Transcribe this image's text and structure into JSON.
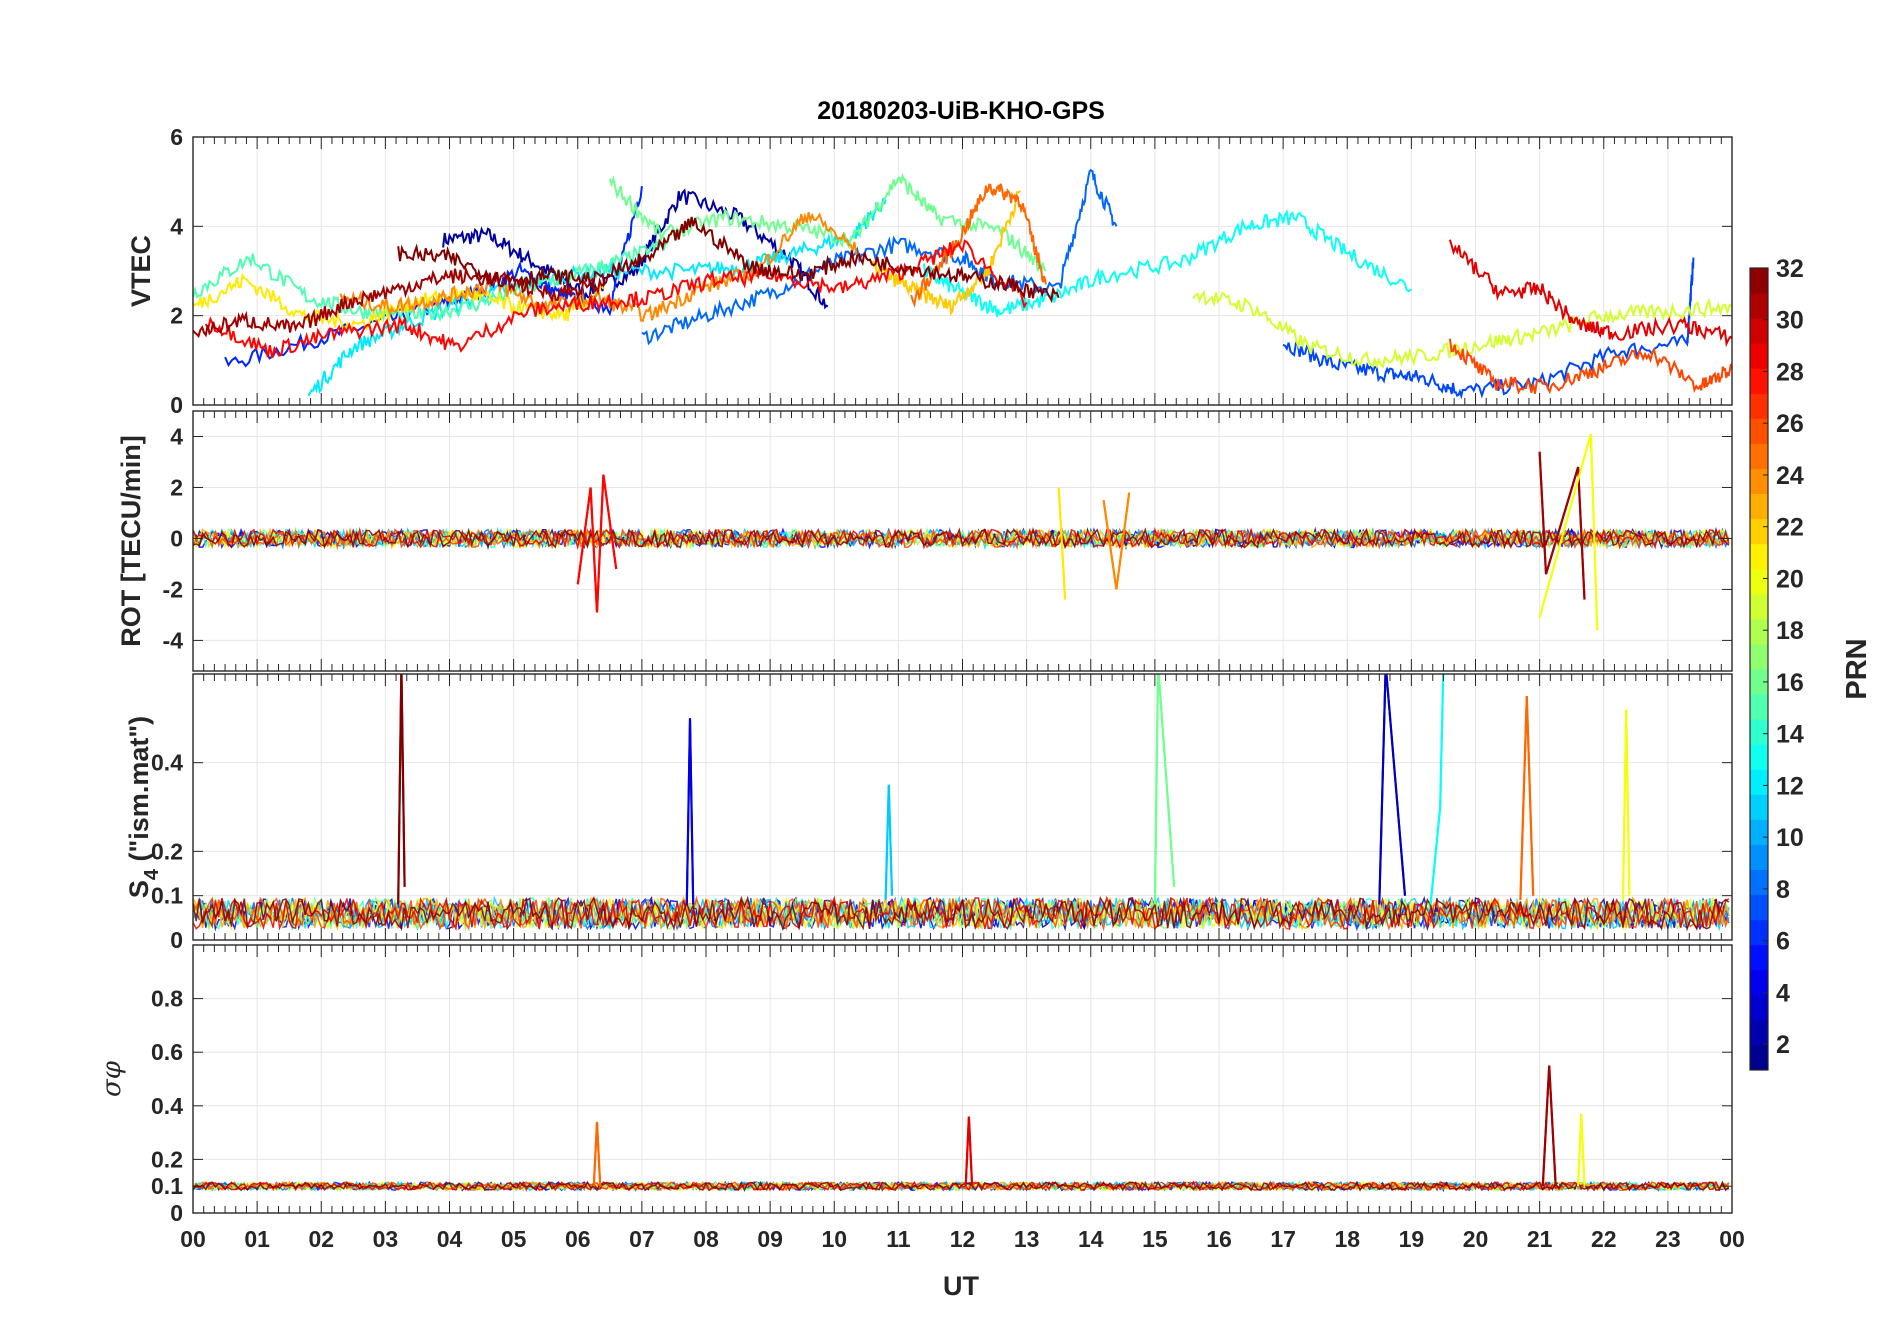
{
  "chart_data": {
    "type": "line",
    "title": "20180203-UiB-KHO-GPS",
    "xlabel": "UT",
    "x_ticks": [
      "00",
      "01",
      "02",
      "03",
      "04",
      "05",
      "06",
      "07",
      "08",
      "09",
      "10",
      "11",
      "12",
      "13",
      "14",
      "15",
      "16",
      "17",
      "18",
      "19",
      "20",
      "21",
      "22",
      "23",
      "00"
    ],
    "xlim_hours": [
      0,
      24
    ],
    "colorbar": {
      "label": "PRN",
      "range": [
        1,
        32
      ],
      "ticks": [
        "2",
        "4",
        "6",
        "8",
        "10",
        "12",
        "14",
        "16",
        "18",
        "20",
        "22",
        "24",
        "26",
        "28",
        "30",
        "32"
      ]
    },
    "panels": [
      {
        "ylabel": "VTEC",
        "ylim": [
          0,
          6
        ],
        "yticks": [
          "0",
          "2",
          "4",
          "6"
        ],
        "series": [
          {
            "prn": 2,
            "x": [
              3.9,
              4.6,
              5.3,
              6.1,
              6.9,
              7.6,
              8.5,
              9.3,
              9.9
            ],
            "y": [
              3.7,
              3.8,
              3.2,
              2.5,
              3.0,
              4.7,
              4.2,
              3.3,
              2.2
            ]
          },
          {
            "prn": 6,
            "x": [
              0.5,
              2.0,
              3.3,
              4.2,
              5.1,
              5.8,
              6.5,
              7.0
            ],
            "y": [
              0.9,
              1.5,
              2.0,
              2.4,
              3.0,
              2.4,
              2.2,
              4.9
            ]
          },
          {
            "prn": 7,
            "x": [
              17.0,
              17.8,
              18.6,
              19.2,
              19.8,
              21.0,
              22.2,
              23.3,
              23.4
            ],
            "y": [
              1.4,
              0.9,
              0.7,
              0.6,
              0.3,
              0.5,
              1.2,
              1.4,
              3.3
            ]
          },
          {
            "prn": 8,
            "x": [
              7.0,
              8.0,
              9.0,
              10.0,
              11.0,
              12.0,
              12.5,
              13.5,
              14.0,
              14.4
            ],
            "y": [
              1.5,
              2.0,
              2.5,
              3.2,
              3.6,
              3.3,
              2.8,
              2.6,
              5.2,
              4.0
            ]
          },
          {
            "prn": 12,
            "x": [
              1.8,
              2.5,
              3.3,
              4.4,
              5.4,
              6.4,
              7.7,
              8.6,
              9.4,
              10.3,
              10.8
            ],
            "y": [
              0.2,
              1.3,
              1.8,
              2.4,
              2.8,
              3.0,
              3.0,
              3.1,
              3.4,
              3.8,
              4.6
            ]
          },
          {
            "prn": 13,
            "x": [
              11.4,
              12.0,
              12.6,
              13.4,
              14.2,
              15.4,
              16.4,
              17.2,
              18.0,
              19.0
            ],
            "y": [
              3.0,
              2.5,
              2.1,
              2.4,
              2.9,
              3.2,
              4.0,
              4.2,
              3.4,
              2.6
            ]
          },
          {
            "prn": 15,
            "x": [
              0.0,
              0.9,
              1.8,
              2.6,
              3.4,
              4.3,
              5.1,
              5.9,
              6.6,
              7.4
            ],
            "y": [
              2.5,
              3.3,
              2.4,
              2.1,
              2.0,
              2.2,
              2.6,
              2.9,
              3.2,
              3.6
            ]
          },
          {
            "prn": 16,
            "x": [
              6.5,
              7.3,
              8.3,
              9.3,
              10.3,
              11.0,
              11.6,
              12.6,
              13.3
            ],
            "y": [
              5.0,
              3.8,
              4.2,
              4.0,
              3.7,
              5.1,
              4.2,
              3.9,
              3.0
            ]
          },
          {
            "prn": 19,
            "x": [
              15.6,
              16.5,
              17.4,
              18.3,
              19.2,
              20.2,
              21.0,
              22.0,
              23.0,
              24.0
            ],
            "y": [
              2.5,
              2.2,
              1.3,
              1.0,
              1.1,
              1.4,
              1.6,
              2.0,
              2.1,
              2.2
            ]
          },
          {
            "prn": 21,
            "x": [
              0.0,
              0.8,
              1.7,
              2.6,
              3.4,
              4.3,
              5.0,
              5.8,
              6.4
            ],
            "y": [
              2.2,
              2.8,
              2.0,
              1.8,
              2.3,
              2.5,
              2.2,
              2.0,
              2.6
            ]
          },
          {
            "prn": 22,
            "x": [
              10.6,
              11.2,
              11.8,
              12.4,
              12.9
            ],
            "y": [
              3.1,
              2.6,
              2.2,
              3.0,
              4.8
            ]
          },
          {
            "prn": 24,
            "x": [
              2.3,
              3.1,
              3.9,
              4.7,
              5.5,
              6.3,
              7.1,
              7.9,
              8.8,
              9.6,
              10.4
            ],
            "y": [
              2.4,
              2.2,
              2.4,
              2.7,
              2.2,
              2.4,
              2.0,
              2.6,
              3.0,
              4.3,
              3.4
            ]
          },
          {
            "prn": 25,
            "x": [
              11.2,
              11.9,
              12.4,
              12.9,
              13.3
            ],
            "y": [
              2.3,
              3.6,
              4.9,
              4.6,
              2.7
            ]
          },
          {
            "prn": 26,
            "x": [
              19.6,
              20.3,
              21.1,
              21.9,
              22.7,
              23.5,
              24.0
            ],
            "y": [
              1.4,
              0.5,
              0.4,
              0.8,
              1.2,
              0.4,
              0.8
            ]
          },
          {
            "prn": 28,
            "x": [
              0.2,
              1.2,
              2.2,
              3.3,
              4.1,
              5.2,
              6.2,
              7.1,
              8.1,
              9.1,
              10.1,
              11.1,
              12.0,
              13.0
            ],
            "y": [
              1.9,
              1.2,
              1.6,
              1.8,
              1.3,
              2.1,
              2.3,
              2.4,
              2.8,
              2.9,
              2.6,
              3.0,
              3.6,
              2.3
            ]
          },
          {
            "prn": 29,
            "x": [
              19.6,
              20.4,
              21.0,
              21.6,
              22.2,
              23.2,
              24.0
            ],
            "y": [
              3.6,
              2.5,
              2.6,
              1.8,
              1.6,
              1.8,
              1.5
            ]
          },
          {
            "prn": 31,
            "x": [
              0.0,
              0.8,
              1.6,
              2.4,
              3.2,
              4.0,
              4.8,
              5.6,
              6.4
            ],
            "y": [
              1.6,
              1.9,
              1.7,
              2.3,
              2.6,
              2.9,
              2.8,
              2.5,
              2.7
            ]
          },
          {
            "prn": 32,
            "x": [
              3.2,
              4.0,
              4.8,
              5.5,
              6.3,
              7.1,
              7.8,
              8.7,
              9.5,
              10.3,
              11.1,
              11.9,
              12.7,
              13.5
            ],
            "y": [
              3.4,
              3.3,
              2.8,
              2.9,
              2.8,
              3.3,
              4.1,
              3.1,
              2.9,
              3.3,
              3.1,
              2.9,
              2.7,
              2.4
            ]
          }
        ]
      },
      {
        "ylabel": "ROT [TECU/min]",
        "ylim": [
          -5.2,
          5.0
        ],
        "yticks": [
          "-4",
          "-2",
          "0",
          "2",
          "4"
        ],
        "series": [
          {
            "prn": 28,
            "x": [
              6.0,
              6.2,
              6.3,
              6.4,
              6.6
            ],
            "y": [
              -1.8,
              2.0,
              -2.9,
              2.5,
              -1.2
            ]
          },
          {
            "prn": 21,
            "x": [
              13.5,
              13.6
            ],
            "y": [
              2.0,
              -2.4
            ]
          },
          {
            "prn": 24,
            "x": [
              14.2,
              14.4,
              14.6
            ],
            "y": [
              1.5,
              -2.0,
              1.8
            ]
          },
          {
            "prn": 31,
            "x": [
              21.0,
              21.1,
              21.6,
              21.7
            ],
            "y": [
              3.4,
              -1.4,
              2.8,
              -2.4
            ]
          },
          {
            "prn": 20,
            "x": [
              21.0,
              21.8,
              21.9
            ],
            "y": [
              -3.1,
              4.1,
              -3.6
            ]
          }
        ]
      },
      {
        "ylabel": "S4 (\"ism.mat\")",
        "ylabel_main": "S",
        "ylabel_sub": "4",
        "ylabel_rest": " (\"ism.mat\")",
        "ylim": [
          0,
          0.6
        ],
        "yticks": [
          "0",
          "0.1",
          "0.2",
          "0.4"
        ],
        "series": [
          {
            "prn": 32,
            "x": [
              3.2,
              3.25,
              3.3
            ],
            "y": [
              0.08,
              0.62,
              0.12
            ]
          },
          {
            "prn": 4,
            "x": [
              7.7,
              7.75,
              7.8
            ],
            "y": [
              0.08,
              0.5,
              0.08
            ]
          },
          {
            "prn": 11,
            "x": [
              10.8,
              10.85,
              10.9
            ],
            "y": [
              0.09,
              0.35,
              0.1
            ]
          },
          {
            "prn": 16,
            "x": [
              15.0,
              15.05,
              15.3
            ],
            "y": [
              0.08,
              0.62,
              0.12
            ]
          },
          {
            "prn": 3,
            "x": [
              18.5,
              18.6,
              18.9
            ],
            "y": [
              0.08,
              0.62,
              0.1
            ]
          },
          {
            "prn": 13,
            "x": [
              19.3,
              19.45,
              19.5
            ],
            "y": [
              0.08,
              0.3,
              0.62
            ]
          },
          {
            "prn": 25,
            "x": [
              20.7,
              20.8,
              20.9
            ],
            "y": [
              0.09,
              0.55,
              0.1
            ]
          },
          {
            "prn": 20,
            "x": [
              22.3,
              22.35,
              22.4
            ],
            "y": [
              0.09,
              0.52,
              0.1
            ]
          }
        ]
      },
      {
        "ylabel": "σφ",
        "ylim": [
          0,
          1.0
        ],
        "yticks": [
          "0",
          "0.1",
          "0.2",
          "0.4",
          "0.6",
          "0.8"
        ],
        "series": [
          {
            "prn": 31,
            "x": [
              21.05,
              21.15,
              21.25
            ],
            "y": [
              0.1,
              0.55,
              0.1
            ]
          },
          {
            "prn": 20,
            "x": [
              21.6,
              21.65,
              21.7
            ],
            "y": [
              0.1,
              0.37,
              0.1
            ]
          },
          {
            "prn": 29,
            "x": [
              12.05,
              12.1,
              12.15
            ],
            "y": [
              0.1,
              0.36,
              0.1
            ]
          },
          {
            "prn": 25,
            "x": [
              6.25,
              6.3,
              6.35
            ],
            "y": [
              0.1,
              0.34,
              0.1
            ]
          }
        ]
      }
    ]
  }
}
